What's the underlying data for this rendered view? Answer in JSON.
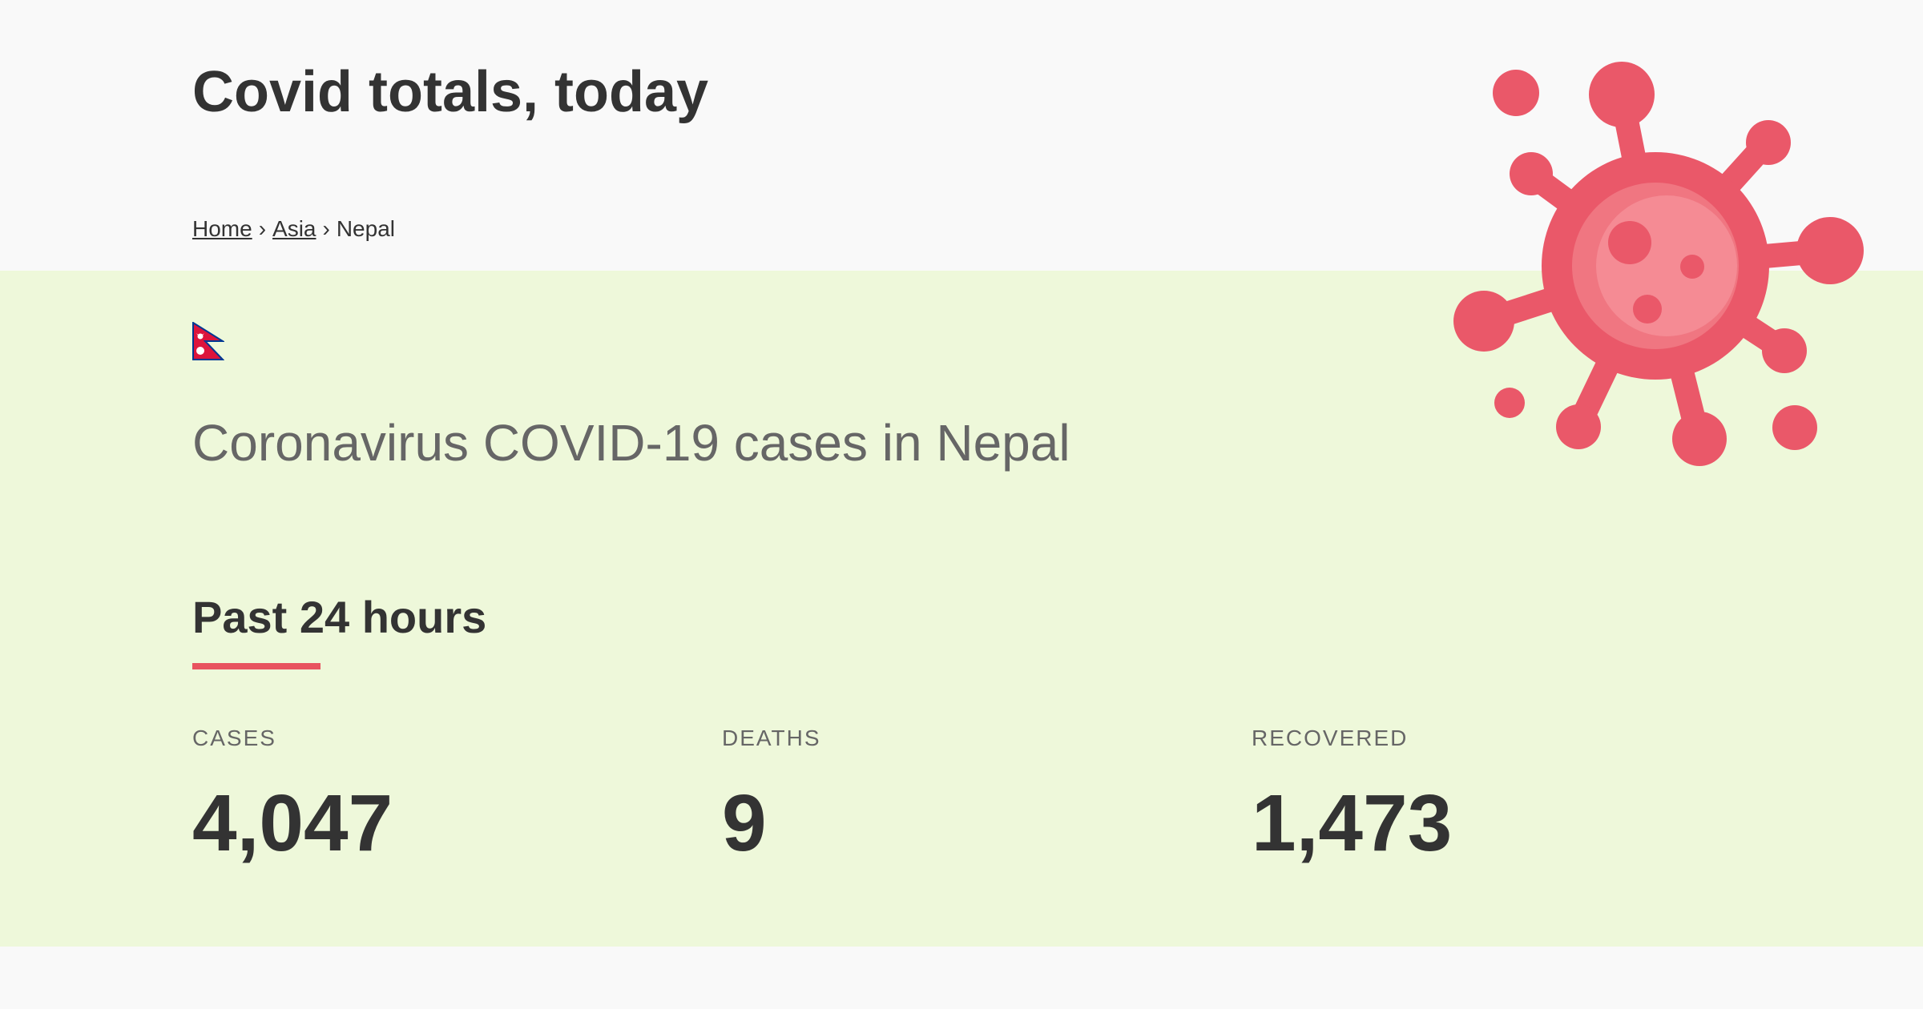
{
  "header": {
    "title": "Covid totals, today",
    "breadcrumb": {
      "home": "Home",
      "region": "Asia",
      "current": "Nepal",
      "separator": "›"
    }
  },
  "main": {
    "flag_icon": "nepal-flag-icon",
    "country_title": "Coronavirus COVID-19 cases in Nepal",
    "section_title": "Past 24 hours",
    "stats": [
      {
        "label": "CASES",
        "value": "4,047"
      },
      {
        "label": "DEATHS",
        "value": "9"
      },
      {
        "label": "RECOVERED",
        "value": "1,473"
      }
    ]
  },
  "decor": {
    "virus_icon": "virus-icon"
  },
  "colors": {
    "accent": "#e8535f",
    "virus": "#ea5869",
    "main_bg": "#eef8da",
    "header_bg": "#f9f9f9",
    "text": "#333333",
    "muted": "#666666",
    "flag_red": "#dc143c",
    "flag_blue": "#003893"
  }
}
